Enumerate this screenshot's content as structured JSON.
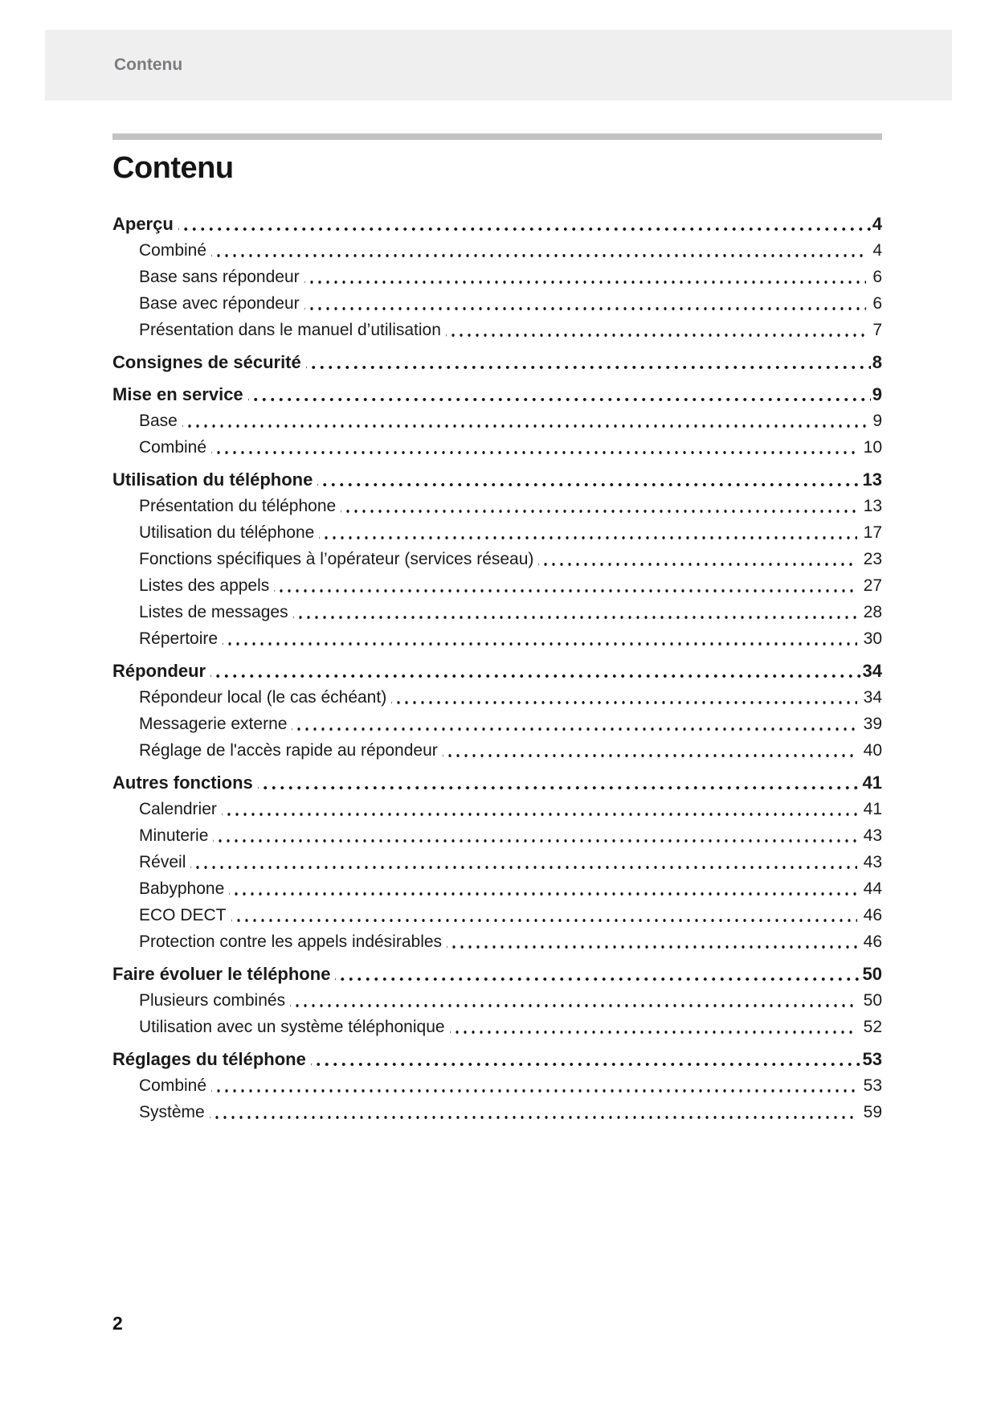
{
  "header": {
    "band_label": "Contenu"
  },
  "title": "Contenu",
  "footer": {
    "page_number": "2"
  },
  "colors": {
    "band_background": "#efefef",
    "band_text": "#7b7c7f",
    "rule": "#c3c3c3",
    "body_text": "#1a1a1a"
  },
  "toc": {
    "entries": [
      {
        "label": "Aperçu",
        "page": "4",
        "level": 0
      },
      {
        "label": "Combiné",
        "page": "4",
        "level": 1
      },
      {
        "label": "Base sans répondeur",
        "page": "6",
        "level": 1
      },
      {
        "label": "Base avec répondeur",
        "page": "6",
        "level": 1
      },
      {
        "label": "Présentation dans le manuel d’utilisation",
        "page": "7",
        "level": 1
      },
      {
        "label": "Consignes de sécurité",
        "page": "8",
        "level": 0
      },
      {
        "label": "Mise en service",
        "page": "9",
        "level": 0
      },
      {
        "label": "Base",
        "page": "9",
        "level": 1
      },
      {
        "label": "Combiné",
        "page": "10",
        "level": 1
      },
      {
        "label": "Utilisation du téléphone",
        "page": "13",
        "level": 0
      },
      {
        "label": "Présentation du téléphone",
        "page": "13",
        "level": 1
      },
      {
        "label": "Utilisation du téléphone",
        "page": "17",
        "level": 1
      },
      {
        "label": "Fonctions spécifiques à l’opérateur (services réseau)",
        "page": "23",
        "level": 1
      },
      {
        "label": "Listes des appels",
        "page": "27",
        "level": 1
      },
      {
        "label": "Listes de messages",
        "page": "28",
        "level": 1
      },
      {
        "label": "Répertoire",
        "page": "30",
        "level": 1
      },
      {
        "label": "Répondeur",
        "page": "34",
        "level": 0
      },
      {
        "label": "Répondeur local (le cas échéant)",
        "page": "34",
        "level": 1
      },
      {
        "label": "Messagerie externe",
        "page": "39",
        "level": 1
      },
      {
        "label": "Réglage de l'accès rapide au répondeur",
        "page": "40",
        "level": 1
      },
      {
        "label": "Autres fonctions",
        "page": "41",
        "level": 0
      },
      {
        "label": "Calendrier",
        "page": "41",
        "level": 1
      },
      {
        "label": "Minuterie",
        "page": "43",
        "level": 1
      },
      {
        "label": "Réveil",
        "page": "43",
        "level": 1
      },
      {
        "label": "Babyphone",
        "page": "44",
        "level": 1
      },
      {
        "label": "ECO DECT",
        "page": "46",
        "level": 1
      },
      {
        "label": "Protection contre les appels indésirables",
        "page": "46",
        "level": 1
      },
      {
        "label": "Faire évoluer le téléphone",
        "page": "50",
        "level": 0
      },
      {
        "label": "Plusieurs combinés",
        "page": "50",
        "level": 1
      },
      {
        "label": "Utilisation avec un système téléphonique",
        "page": "52",
        "level": 1
      },
      {
        "label": "Réglages du téléphone",
        "page": "53",
        "level": 0
      },
      {
        "label": "Combiné",
        "page": "53",
        "level": 1
      },
      {
        "label": "Système",
        "page": "59",
        "level": 1
      }
    ]
  }
}
